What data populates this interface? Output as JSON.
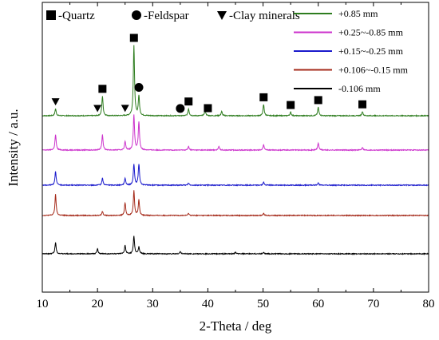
{
  "chart_data": {
    "type": "line",
    "title": "",
    "xlabel": "2-Theta / deg",
    "ylabel": "Intensity / a.u.",
    "xlim": [
      10,
      80
    ],
    "xticks": [
      10,
      20,
      30,
      40,
      50,
      60,
      70,
      80
    ],
    "grid": false,
    "legend_position": "top-right",
    "marker_key": [
      {
        "symbol": "square",
        "label": "-Quartz"
      },
      {
        "symbol": "circle",
        "label": "-Feldspar"
      },
      {
        "symbol": "triangle-down",
        "label": "-Clay minerals"
      }
    ],
    "series": [
      {
        "name": "+0.85 mm",
        "color": "#2e7d1f",
        "offset": 4,
        "peaks": [
          [
            12.4,
            0.1
          ],
          [
            20.9,
            0.28
          ],
          [
            26.6,
            1.0
          ],
          [
            27.5,
            0.28
          ],
          [
            36.5,
            0.1
          ],
          [
            39.5,
            0.08
          ],
          [
            42.5,
            0.06
          ],
          [
            50.1,
            0.16
          ],
          [
            55.0,
            0.05
          ],
          [
            60.0,
            0.12
          ],
          [
            68.0,
            0.06
          ]
        ]
      },
      {
        "name": "+0.25~-0.85 mm",
        "color": "#cc33cc",
        "offset": 3,
        "peaks": [
          [
            12.4,
            0.22
          ],
          [
            20.9,
            0.22
          ],
          [
            25.0,
            0.12
          ],
          [
            26.6,
            0.5
          ],
          [
            27.5,
            0.4
          ],
          [
            36.5,
            0.05
          ],
          [
            42.0,
            0.05
          ],
          [
            50.1,
            0.08
          ],
          [
            60.0,
            0.1
          ],
          [
            68.0,
            0.04
          ]
        ]
      },
      {
        "name": "+0.15~-0.25 mm",
        "color": "#1a1acc",
        "offset": 2,
        "peaks": [
          [
            12.4,
            0.2
          ],
          [
            20.9,
            0.1
          ],
          [
            25.0,
            0.1
          ],
          [
            26.6,
            0.3
          ],
          [
            27.5,
            0.3
          ],
          [
            36.5,
            0.03
          ],
          [
            50.1,
            0.04
          ],
          [
            60.0,
            0.03
          ]
        ]
      },
      {
        "name": "+0.106~-0.15 mm",
        "color": "#a52a1a",
        "offset": 1,
        "peaks": [
          [
            12.4,
            0.3
          ],
          [
            20.9,
            0.06
          ],
          [
            25.0,
            0.18
          ],
          [
            26.6,
            0.35
          ],
          [
            27.5,
            0.22
          ],
          [
            36.5,
            0.03
          ],
          [
            50.1,
            0.03
          ]
        ]
      },
      {
        "name": "-0.106 mm",
        "color": "#000000",
        "offset": 0,
        "peaks": [
          [
            12.4,
            0.16
          ],
          [
            20.0,
            0.07
          ],
          [
            25.0,
            0.12
          ],
          [
            26.6,
            0.25
          ],
          [
            27.5,
            0.1
          ],
          [
            35.0,
            0.03
          ],
          [
            45.0,
            0.02
          ],
          [
            50.1,
            0.02
          ]
        ]
      }
    ],
    "annotations": [
      {
        "symbol": "triangle-down",
        "x": 12.4
      },
      {
        "symbol": "triangle-down",
        "x": 20.0
      },
      {
        "symbol": "triangle-down",
        "x": 25.0
      },
      {
        "symbol": "square",
        "x": 20.9
      },
      {
        "symbol": "square",
        "x": 26.6
      },
      {
        "symbol": "circle",
        "x": 27.5
      },
      {
        "symbol": "circle",
        "x": 35.0
      },
      {
        "symbol": "square",
        "x": 36.5
      },
      {
        "symbol": "square",
        "x": 40.0
      },
      {
        "symbol": "square",
        "x": 50.1
      },
      {
        "symbol": "square",
        "x": 55.0
      },
      {
        "symbol": "square",
        "x": 60.0
      },
      {
        "symbol": "square",
        "x": 68.0
      }
    ]
  }
}
